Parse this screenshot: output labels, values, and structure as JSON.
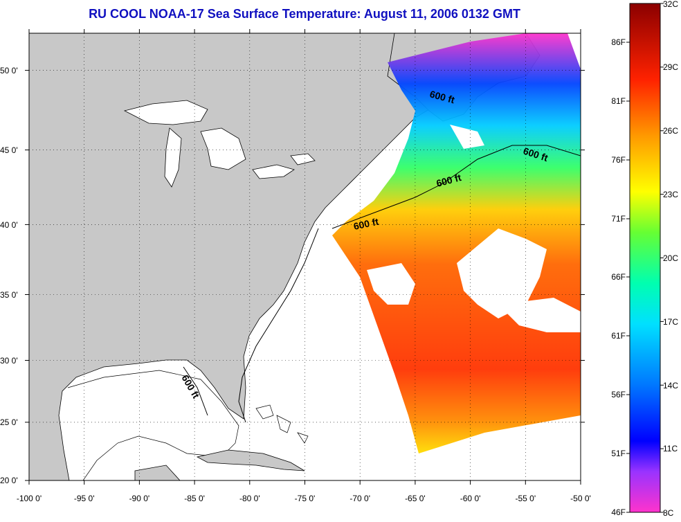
{
  "title": "RU COOL  NOAA-17  Sea Surface Temperature:  August 11, 2006 0132 GMT",
  "map": {
    "lon_ticks": [
      "-100 0'",
      "-95 0'",
      "-90 0'",
      "-85 0'",
      "-80 0'",
      "-75 0'",
      "-70 0'",
      "-65 0'",
      "-60 0'",
      "-55 0'",
      "-50 0'"
    ],
    "lat_ticks": [
      "50 0'",
      "45 0'",
      "40 0'",
      "35 0'",
      "30 0'",
      "25 0'",
      "20 0'"
    ],
    "lon_range": [
      -100,
      -50
    ],
    "lat_range": [
      20,
      52.5
    ],
    "contour_labels": [
      "600 ft",
      "600 ft",
      "600 ft",
      "600 ft",
      "600 ft"
    ],
    "colors": {
      "land": "#c8c8c8",
      "background": "#ffffff",
      "title": "#1010c0"
    }
  },
  "colorbar": {
    "celsius_labels": [
      "32C",
      "29C",
      "26C",
      "23C",
      "20C",
      "17C",
      "14C",
      "11C",
      "8C"
    ],
    "fahrenheit_labels": [
      "86F",
      "81F",
      "76F",
      "71F",
      "66F",
      "61F",
      "56F",
      "51F",
      "46F"
    ],
    "range_c": [
      8,
      32
    ],
    "colors": [
      "#ff33cc",
      "#9933ff",
      "#0000ff",
      "#0077ff",
      "#00ccff",
      "#00ffcc",
      "#33ff66",
      "#99ff00",
      "#ffff00",
      "#ffcc00",
      "#ff9900",
      "#ff5500",
      "#ff1100",
      "#cc0000",
      "#990000"
    ]
  }
}
